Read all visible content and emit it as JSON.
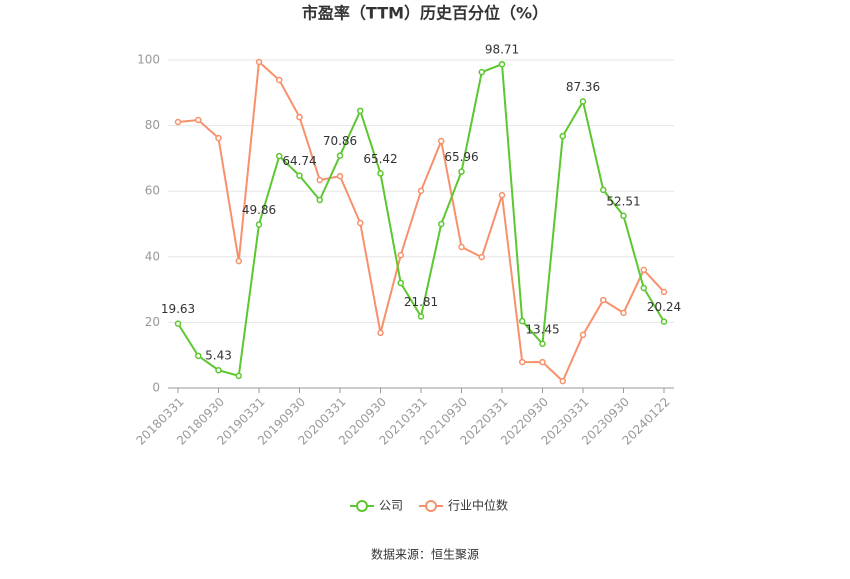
{
  "chart_data": {
    "type": "line",
    "title": "市盈率（TTM）历史百分位（%）",
    "categories": [
      "20180331",
      null,
      "20180930",
      null,
      "20190331",
      null,
      "20190930",
      null,
      "20200331",
      null,
      "20200930",
      null,
      "20210331",
      null,
      "20210930",
      null,
      "20220331",
      null,
      "20220930",
      null,
      "20230331",
      null,
      "20230930",
      null,
      "20240122"
    ],
    "series": [
      {
        "name": "公司",
        "color": "#5cc72e",
        "values": [
          19.63,
          9.8,
          5.43,
          3.7,
          49.86,
          70.7,
          64.74,
          57.3,
          70.86,
          84.5,
          65.42,
          32.0,
          21.81,
          50.0,
          65.96,
          96.3,
          98.71,
          20.4,
          13.45,
          76.8,
          87.36,
          60.4,
          52.51,
          30.5,
          20.24
        ],
        "value_labels": [
          "19.63",
          null,
          "5.43",
          null,
          "49.86",
          null,
          "64.74",
          null,
          "70.86",
          null,
          "65.42",
          null,
          "21.81",
          null,
          "65.96",
          null,
          "98.71",
          null,
          "13.45",
          null,
          "87.36",
          null,
          "52.51",
          null,
          "20.24"
        ]
      },
      {
        "name": "行业中位数",
        "color": "#f7916b",
        "values": [
          81.1,
          81.7,
          76.2,
          38.7,
          99.4,
          93.9,
          82.6,
          63.4,
          64.6,
          50.3,
          16.8,
          40.5,
          60.1,
          75.3,
          43.0,
          39.9,
          58.8,
          7.9,
          7.9,
          2.1,
          16.2,
          26.8,
          22.9,
          36.0,
          29.3
        ]
      }
    ],
    "ylim": [
      0,
      100
    ],
    "yticks": [
      0,
      20,
      40,
      60,
      80,
      100
    ],
    "grid": true,
    "legend": "bottom",
    "source": "数据来源：恒生聚源"
  }
}
